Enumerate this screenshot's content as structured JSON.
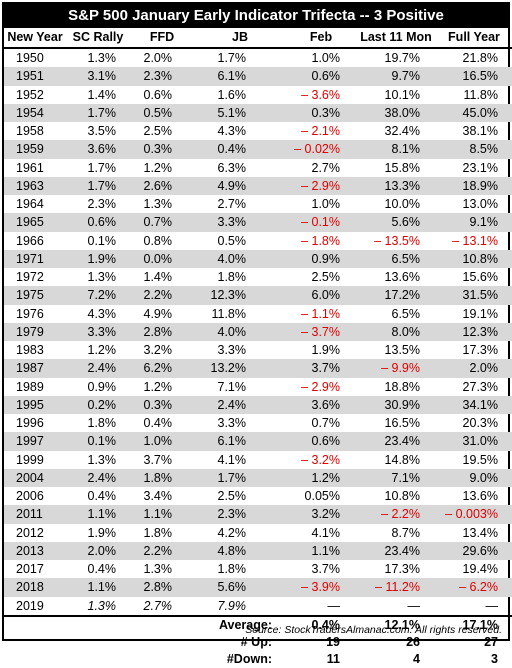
{
  "title": "S&P 500 January Early Indicator Trifecta -- 3 Positive",
  "columns": [
    "New Year",
    "SC Rally",
    "FFD",
    "JB",
    "Feb",
    "Last 11 Mon",
    "Full Year"
  ],
  "rows": [
    {
      "year": "1950",
      "sc": "1.3%",
      "ffd": "2.0%",
      "jb": "1.7%",
      "feb": "1.0%",
      "l11": "19.7%",
      "fy": "21.8%"
    },
    {
      "year": "1951",
      "sc": "3.1%",
      "ffd": "2.3%",
      "jb": "6.1%",
      "feb": "0.6%",
      "l11": "9.7%",
      "fy": "16.5%"
    },
    {
      "year": "1952",
      "sc": "1.4%",
      "ffd": "0.6%",
      "jb": "1.6%",
      "feb": "– 3.6%",
      "l11": "10.1%",
      "fy": "11.8%"
    },
    {
      "year": "1954",
      "sc": "1.7%",
      "ffd": "0.5%",
      "jb": "5.1%",
      "feb": "0.3%",
      "l11": "38.0%",
      "fy": "45.0%"
    },
    {
      "year": "1958",
      "sc": "3.5%",
      "ffd": "2.5%",
      "jb": "4.3%",
      "feb": "– 2.1%",
      "l11": "32.4%",
      "fy": "38.1%"
    },
    {
      "year": "1959",
      "sc": "3.6%",
      "ffd": "0.3%",
      "jb": "0.4%",
      "feb": "– 0.02%",
      "l11": "8.1%",
      "fy": "8.5%"
    },
    {
      "year": "1961",
      "sc": "1.7%",
      "ffd": "1.2%",
      "jb": "6.3%",
      "feb": "2.7%",
      "l11": "15.8%",
      "fy": "23.1%"
    },
    {
      "year": "1963",
      "sc": "1.7%",
      "ffd": "2.6%",
      "jb": "4.9%",
      "feb": "– 2.9%",
      "l11": "13.3%",
      "fy": "18.9%"
    },
    {
      "year": "1964",
      "sc": "2.3%",
      "ffd": "1.3%",
      "jb": "2.7%",
      "feb": "1.0%",
      "l11": "10.0%",
      "fy": "13.0%"
    },
    {
      "year": "1965",
      "sc": "0.6%",
      "ffd": "0.7%",
      "jb": "3.3%",
      "feb": "– 0.1%",
      "l11": "5.6%",
      "fy": "9.1%"
    },
    {
      "year": "1966",
      "sc": "0.1%",
      "ffd": "0.8%",
      "jb": "0.5%",
      "feb": "– 1.8%",
      "l11": "– 13.5%",
      "fy": "– 13.1%"
    },
    {
      "year": "1971",
      "sc": "1.9%",
      "ffd": "0.0%",
      "jb": "4.0%",
      "feb": "0.9%",
      "l11": "6.5%",
      "fy": "10.8%"
    },
    {
      "year": "1972",
      "sc": "1.3%",
      "ffd": "1.4%",
      "jb": "1.8%",
      "feb": "2.5%",
      "l11": "13.6%",
      "fy": "15.6%"
    },
    {
      "year": "1975",
      "sc": "7.2%",
      "ffd": "2.2%",
      "jb": "12.3%",
      "feb": "6.0%",
      "l11": "17.2%",
      "fy": "31.5%"
    },
    {
      "year": "1976",
      "sc": "4.3%",
      "ffd": "4.9%",
      "jb": "11.8%",
      "feb": "– 1.1%",
      "l11": "6.5%",
      "fy": "19.1%"
    },
    {
      "year": "1979",
      "sc": "3.3%",
      "ffd": "2.8%",
      "jb": "4.0%",
      "feb": "– 3.7%",
      "l11": "8.0%",
      "fy": "12.3%"
    },
    {
      "year": "1983",
      "sc": "1.2%",
      "ffd": "3.2%",
      "jb": "3.3%",
      "feb": "1.9%",
      "l11": "13.5%",
      "fy": "17.3%"
    },
    {
      "year": "1987",
      "sc": "2.4%",
      "ffd": "6.2%",
      "jb": "13.2%",
      "feb": "3.7%",
      "l11": "– 9.9%",
      "fy": "2.0%"
    },
    {
      "year": "1989",
      "sc": "0.9%",
      "ffd": "1.2%",
      "jb": "7.1%",
      "feb": "– 2.9%",
      "l11": "18.8%",
      "fy": "27.3%"
    },
    {
      "year": "1995",
      "sc": "0.2%",
      "ffd": "0.3%",
      "jb": "2.4%",
      "feb": "3.6%",
      "l11": "30.9%",
      "fy": "34.1%"
    },
    {
      "year": "1996",
      "sc": "1.8%",
      "ffd": "0.4%",
      "jb": "3.3%",
      "feb": "0.7%",
      "l11": "16.5%",
      "fy": "20.3%"
    },
    {
      "year": "1997",
      "sc": "0.1%",
      "ffd": "1.0%",
      "jb": "6.1%",
      "feb": "0.6%",
      "l11": "23.4%",
      "fy": "31.0%"
    },
    {
      "year": "1999",
      "sc": "1.3%",
      "ffd": "3.7%",
      "jb": "4.1%",
      "feb": "– 3.2%",
      "l11": "14.8%",
      "fy": "19.5%"
    },
    {
      "year": "2004",
      "sc": "2.4%",
      "ffd": "1.8%",
      "jb": "1.7%",
      "feb": "1.2%",
      "l11": "7.1%",
      "fy": "9.0%"
    },
    {
      "year": "2006",
      "sc": "0.4%",
      "ffd": "3.4%",
      "jb": "2.5%",
      "feb": "0.05%",
      "l11": "10.8%",
      "fy": "13.6%"
    },
    {
      "year": "2011",
      "sc": "1.1%",
      "ffd": "1.1%",
      "jb": "2.3%",
      "feb": "3.2%",
      "l11": "– 2.2%",
      "fy": "– 0.003%"
    },
    {
      "year": "2012",
      "sc": "1.9%",
      "ffd": "1.8%",
      "jb": "4.2%",
      "feb": "4.1%",
      "l11": "8.7%",
      "fy": "13.4%"
    },
    {
      "year": "2013",
      "sc": "2.0%",
      "ffd": "2.2%",
      "jb": "4.8%",
      "feb": "1.1%",
      "l11": "23.4%",
      "fy": "29.6%"
    },
    {
      "year": "2017",
      "sc": "0.4%",
      "ffd": "1.3%",
      "jb": "1.8%",
      "feb": "3.7%",
      "l11": "17.3%",
      "fy": "19.4%"
    },
    {
      "year": "2018",
      "sc": "1.1%",
      "ffd": "2.8%",
      "jb": "5.6%",
      "feb": "– 3.9%",
      "l11": "– 11.2%",
      "fy": "– 6.2%"
    },
    {
      "year": "2019",
      "sc": "1.3%",
      "ffd": "2.7%",
      "jb": "7.9%",
      "feb": "—",
      "l11": "—",
      "fy": "—",
      "italic": true
    }
  ],
  "summary": [
    {
      "label": "Average:",
      "feb": "0.4%",
      "l11": "12.1%",
      "fy": "17.1%"
    },
    {
      "label": "# Up:",
      "feb": "19",
      "l11": "26",
      "fy": "27"
    },
    {
      "label": "#Down:",
      "feb": "11",
      "l11": "4",
      "fy": "3"
    }
  ],
  "source": "Source: StockTradersAlmanac.com. All rights reserved.",
  "colors": {
    "negative": "#e00000",
    "shade": "#d8d8d8",
    "title_bg": "#000000"
  }
}
